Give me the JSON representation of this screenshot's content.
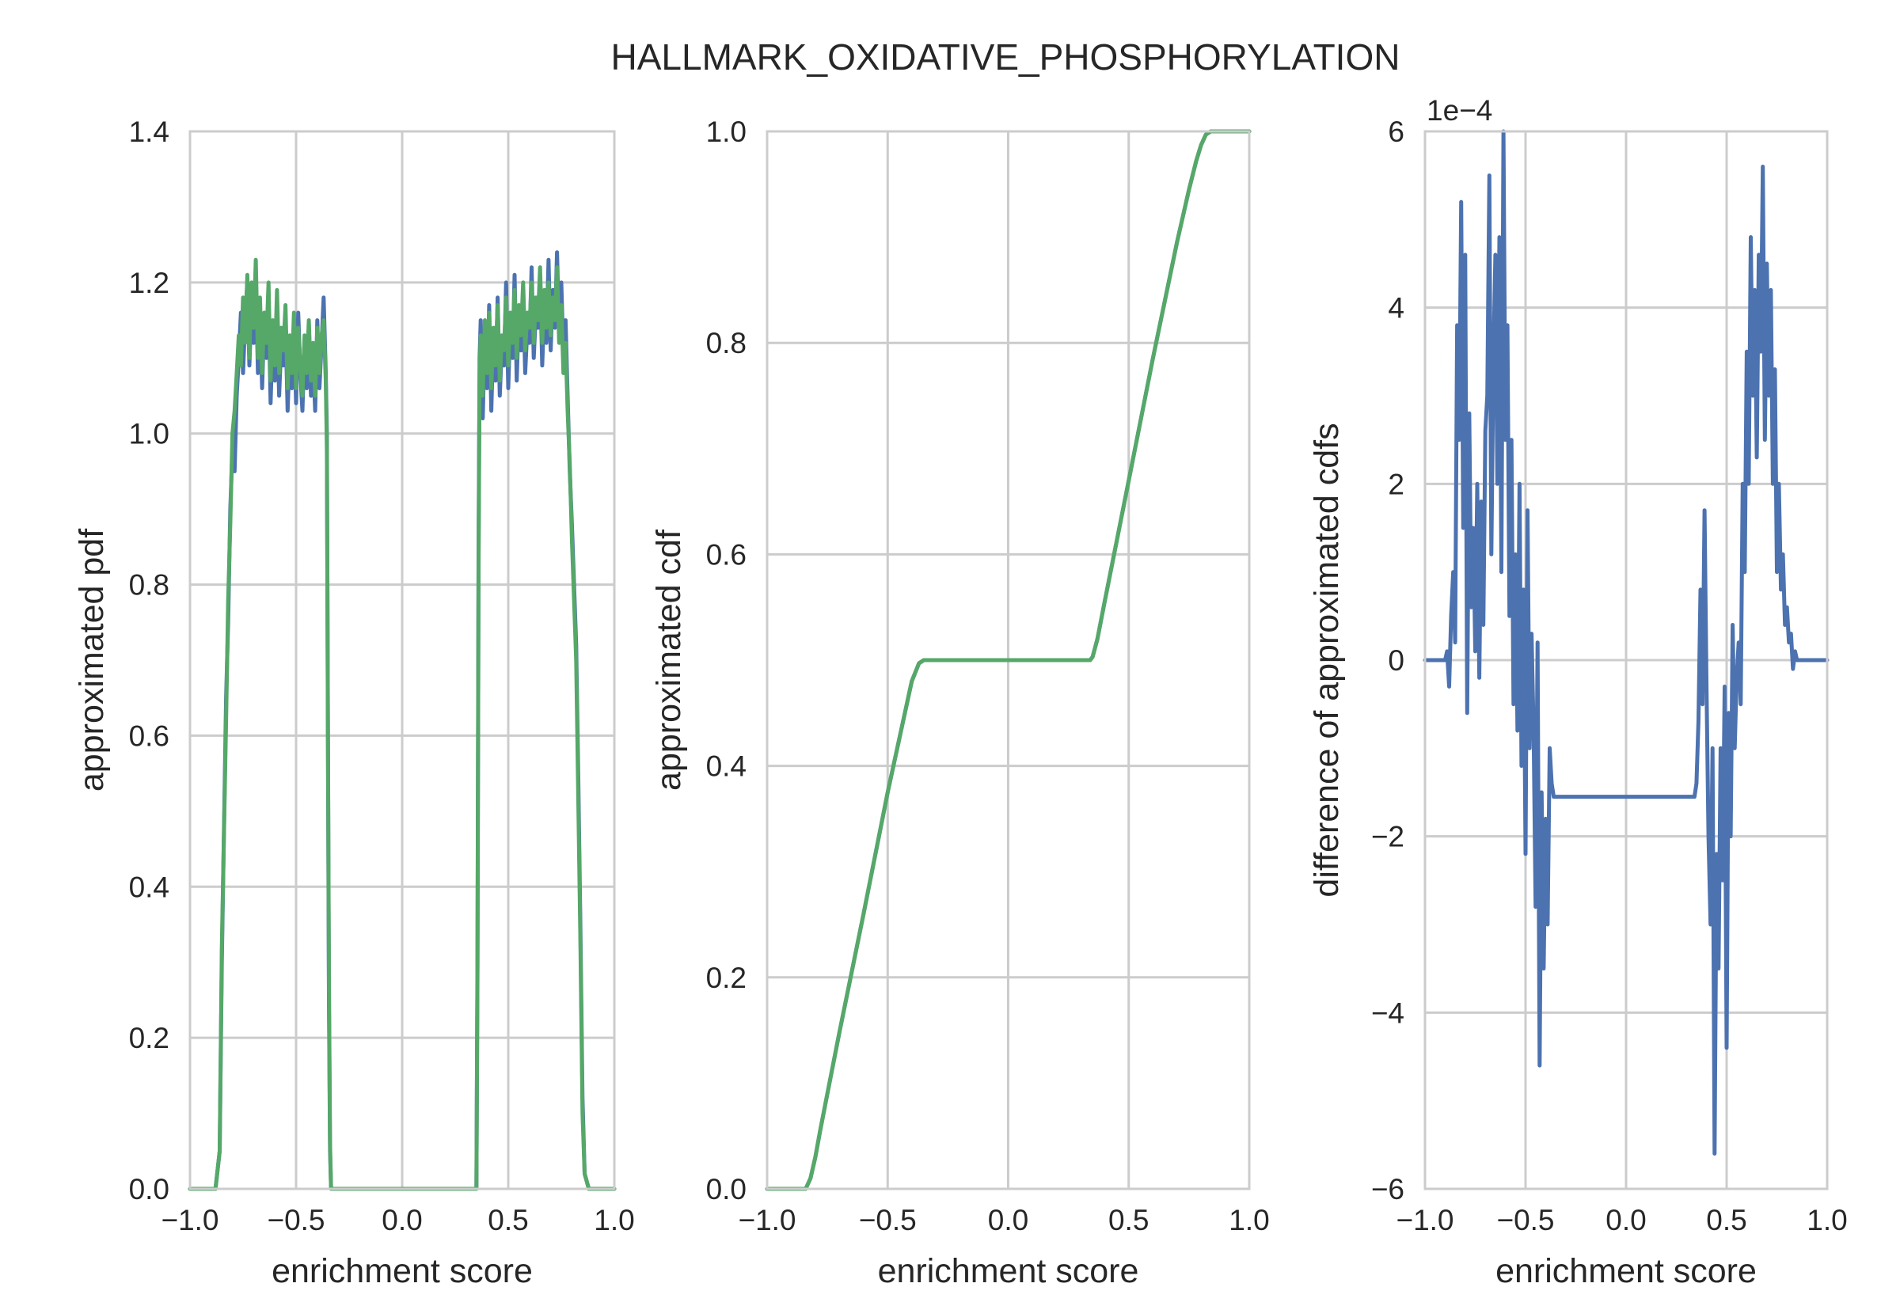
{
  "suptitle": "HALLMARK_OXIDATIVE_PHOSPHORYLATION",
  "colors": {
    "blue": "#4c72b0",
    "green": "#55a868",
    "grid": "#cccccc"
  },
  "chart_data": [
    {
      "type": "line",
      "title": "",
      "xlabel": "enrichment score",
      "ylabel": "approximated pdf",
      "xlim": [
        -1.0,
        1.0
      ],
      "ylim": [
        0.0,
        1.4
      ],
      "xticks": [
        -1.0,
        -0.5,
        0.0,
        0.5,
        1.0
      ],
      "xtick_labels": [
        "−1.0",
        "−0.5",
        "0.0",
        "0.5",
        "1.0"
      ],
      "yticks": [
        0.0,
        0.2,
        0.4,
        0.6,
        0.8,
        1.0,
        1.2,
        1.4
      ],
      "ytick_labels": [
        "0.0",
        "0.2",
        "0.4",
        "0.6",
        "0.8",
        "1.0",
        "1.2",
        "1.4"
      ],
      "grid": true,
      "series": [
        {
          "color": "#4c72b0",
          "x": [
            -1.0,
            -0.88,
            -0.86,
            -0.85,
            -0.83,
            -0.82,
            -0.81,
            -0.8,
            -0.79,
            -0.78,
            -0.77,
            -0.76,
            -0.75,
            -0.74,
            -0.73,
            -0.72,
            -0.71,
            -0.7,
            -0.69,
            -0.68,
            -0.67,
            -0.66,
            -0.65,
            -0.64,
            -0.63,
            -0.62,
            -0.61,
            -0.6,
            -0.59,
            -0.58,
            -0.57,
            -0.56,
            -0.55,
            -0.54,
            -0.53,
            -0.52,
            -0.51,
            -0.5,
            -0.49,
            -0.48,
            -0.47,
            -0.46,
            -0.45,
            -0.44,
            -0.43,
            -0.42,
            -0.41,
            -0.4,
            -0.39,
            -0.38,
            -0.37,
            -0.36,
            -0.355,
            -0.35,
            -0.345,
            -0.34,
            -0.335,
            -0.33,
            -0.32,
            0.34,
            0.35,
            0.355,
            0.36,
            0.365,
            0.37,
            0.38,
            0.39,
            0.4,
            0.41,
            0.42,
            0.43,
            0.44,
            0.45,
            0.46,
            0.47,
            0.48,
            0.49,
            0.5,
            0.51,
            0.52,
            0.53,
            0.54,
            0.55,
            0.56,
            0.57,
            0.58,
            0.59,
            0.6,
            0.61,
            0.62,
            0.63,
            0.64,
            0.65,
            0.66,
            0.67,
            0.68,
            0.69,
            0.7,
            0.71,
            0.72,
            0.73,
            0.74,
            0.75,
            0.76,
            0.77,
            0.78,
            0.79,
            0.8,
            0.81,
            0.82,
            0.83,
            0.84,
            0.85,
            0.86,
            0.88,
            1.0
          ],
          "y": [
            0.0,
            0.0,
            0.05,
            0.3,
            0.65,
            0.75,
            0.9,
            0.98,
            0.95,
            1.05,
            1.1,
            1.16,
            1.08,
            1.15,
            1.2,
            1.09,
            1.17,
            1.12,
            1.21,
            1.08,
            1.16,
            1.06,
            1.15,
            1.1,
            1.18,
            1.04,
            1.13,
            1.07,
            1.16,
            1.05,
            1.12,
            1.09,
            1.15,
            1.03,
            1.11,
            1.06,
            1.14,
            1.04,
            1.16,
            1.08,
            1.03,
            1.12,
            1.06,
            1.14,
            1.05,
            1.1,
            1.03,
            1.15,
            1.06,
            1.12,
            1.18,
            1.08,
            1.0,
            0.6,
            0.25,
            0.05,
            0.0,
            0.0,
            0.0,
            0.0,
            0.0,
            0.3,
            0.85,
            1.1,
            1.15,
            1.02,
            1.14,
            1.06,
            1.17,
            1.03,
            1.13,
            1.07,
            1.18,
            1.05,
            1.12,
            1.09,
            1.2,
            1.06,
            1.15,
            1.1,
            1.21,
            1.07,
            1.16,
            1.11,
            1.19,
            1.08,
            1.14,
            1.12,
            1.22,
            1.1,
            1.16,
            1.14,
            1.21,
            1.09,
            1.17,
            1.12,
            1.23,
            1.11,
            1.19,
            1.14,
            1.24,
            1.13,
            1.2,
            1.1,
            1.15,
            1.05,
            0.95,
            0.88,
            0.8,
            0.72,
            0.55,
            0.35,
            0.12,
            0.02,
            0.0,
            0.0
          ]
        },
        {
          "color": "#55a868",
          "x": [
            -1.0,
            -0.88,
            -0.86,
            -0.85,
            -0.83,
            -0.82,
            -0.81,
            -0.8,
            -0.79,
            -0.78,
            -0.77,
            -0.76,
            -0.75,
            -0.74,
            -0.73,
            -0.72,
            -0.71,
            -0.7,
            -0.69,
            -0.68,
            -0.67,
            -0.66,
            -0.65,
            -0.64,
            -0.63,
            -0.62,
            -0.61,
            -0.6,
            -0.59,
            -0.58,
            -0.57,
            -0.56,
            -0.55,
            -0.54,
            -0.53,
            -0.52,
            -0.51,
            -0.5,
            -0.49,
            -0.48,
            -0.47,
            -0.46,
            -0.45,
            -0.44,
            -0.43,
            -0.42,
            -0.41,
            -0.4,
            -0.39,
            -0.38,
            -0.37,
            -0.36,
            -0.355,
            -0.35,
            -0.345,
            -0.34,
            -0.335,
            -0.33,
            -0.32,
            0.34,
            0.35,
            0.355,
            0.36,
            0.365,
            0.37,
            0.38,
            0.39,
            0.4,
            0.41,
            0.42,
            0.43,
            0.44,
            0.45,
            0.46,
            0.47,
            0.48,
            0.49,
            0.5,
            0.51,
            0.52,
            0.53,
            0.54,
            0.55,
            0.56,
            0.57,
            0.58,
            0.59,
            0.6,
            0.61,
            0.62,
            0.63,
            0.64,
            0.65,
            0.66,
            0.67,
            0.68,
            0.69,
            0.7,
            0.71,
            0.72,
            0.73,
            0.74,
            0.75,
            0.76,
            0.77,
            0.78,
            0.79,
            0.8,
            0.81,
            0.82,
            0.83,
            0.84,
            0.85,
            0.86,
            0.88,
            1.0
          ],
          "y": [
            0.0,
            0.0,
            0.05,
            0.32,
            0.62,
            0.78,
            0.88,
            1.0,
            1.03,
            1.08,
            1.13,
            1.09,
            1.18,
            1.12,
            1.21,
            1.1,
            1.2,
            1.14,
            1.23,
            1.1,
            1.18,
            1.08,
            1.16,
            1.12,
            1.2,
            1.07,
            1.15,
            1.09,
            1.19,
            1.08,
            1.14,
            1.11,
            1.17,
            1.06,
            1.13,
            1.08,
            1.16,
            1.06,
            1.14,
            1.09,
            1.05,
            1.13,
            1.08,
            1.15,
            1.07,
            1.12,
            1.05,
            1.14,
            1.08,
            1.13,
            1.15,
            1.07,
            0.98,
            0.62,
            0.28,
            0.06,
            0.0,
            0.0,
            0.0,
            0.0,
            0.0,
            0.28,
            0.82,
            1.08,
            1.13,
            1.05,
            1.15,
            1.08,
            1.16,
            1.06,
            1.14,
            1.09,
            1.17,
            1.07,
            1.13,
            1.11,
            1.18,
            1.09,
            1.16,
            1.12,
            1.19,
            1.1,
            1.17,
            1.13,
            1.2,
            1.11,
            1.16,
            1.14,
            1.2,
            1.12,
            1.18,
            1.15,
            1.22,
            1.12,
            1.19,
            1.14,
            1.2,
            1.13,
            1.18,
            1.15,
            1.22,
            1.12,
            1.17,
            1.08,
            1.12,
            1.03,
            0.96,
            0.86,
            0.78,
            0.7,
            0.52,
            0.33,
            0.1,
            0.02,
            0.0,
            0.0
          ]
        }
      ]
    },
    {
      "type": "line",
      "title": "",
      "xlabel": "enrichment score",
      "ylabel": "approximated cdf",
      "xlim": [
        -1.0,
        1.0
      ],
      "ylim": [
        0.0,
        1.0
      ],
      "xticks": [
        -1.0,
        -0.5,
        0.0,
        0.5,
        1.0
      ],
      "xtick_labels": [
        "−1.0",
        "−0.5",
        "0.0",
        "0.5",
        "1.0"
      ],
      "yticks": [
        0.0,
        0.2,
        0.4,
        0.6,
        0.8,
        1.0
      ],
      "ytick_labels": [
        "0.0",
        "0.2",
        "0.4",
        "0.6",
        "0.8",
        "1.0"
      ],
      "grid": true,
      "series": [
        {
          "color": "#4c72b0",
          "x": [
            -1.0,
            -0.84,
            -0.82,
            -0.8,
            -0.78,
            -0.75,
            -0.7,
            -0.6,
            -0.5,
            -0.4,
            -0.37,
            -0.35,
            -0.34,
            0.34,
            0.35,
            0.37,
            0.4,
            0.5,
            0.6,
            0.7,
            0.75,
            0.78,
            0.8,
            0.82,
            0.84,
            1.0
          ],
          "y": [
            0.0,
            0.0,
            0.01,
            0.03,
            0.055,
            0.09,
            0.148,
            0.26,
            0.375,
            0.48,
            0.497,
            0.5,
            0.5,
            0.5,
            0.503,
            0.52,
            0.555,
            0.67,
            0.785,
            0.895,
            0.945,
            0.972,
            0.987,
            0.997,
            1.0,
            1.0
          ]
        },
        {
          "color": "#55a868",
          "x": [
            -1.0,
            -0.84,
            -0.82,
            -0.8,
            -0.78,
            -0.75,
            -0.7,
            -0.6,
            -0.5,
            -0.4,
            -0.37,
            -0.35,
            -0.34,
            0.34,
            0.35,
            0.37,
            0.4,
            0.5,
            0.6,
            0.7,
            0.75,
            0.78,
            0.8,
            0.82,
            0.84,
            1.0
          ],
          "y": [
            0.0,
            0.0,
            0.01,
            0.03,
            0.055,
            0.09,
            0.148,
            0.26,
            0.375,
            0.48,
            0.497,
            0.5,
            0.5,
            0.5,
            0.503,
            0.52,
            0.555,
            0.67,
            0.785,
            0.895,
            0.945,
            0.972,
            0.987,
            0.997,
            1.0,
            1.0
          ]
        }
      ]
    },
    {
      "type": "line",
      "title": "",
      "xlabel": "enrichment score",
      "ylabel": "difference of approximated cdfs",
      "offset_label": "1e−4",
      "xlim": [
        -1.0,
        1.0
      ],
      "ylim": [
        -6,
        6
      ],
      "xticks": [
        -1.0,
        -0.5,
        0.0,
        0.5,
        1.0
      ],
      "xtick_labels": [
        "−1.0",
        "−0.5",
        "0.0",
        "0.5",
        "1.0"
      ],
      "yticks": [
        -6,
        -4,
        -2,
        0,
        2,
        4,
        6
      ],
      "ytick_labels": [
        "−6",
        "−4",
        "−2",
        "0",
        "2",
        "4",
        "6"
      ],
      "grid": true,
      "series": [
        {
          "color": "#4c72b0",
          "x": [
            -1.0,
            -0.9,
            -0.89,
            -0.88,
            -0.87,
            -0.86,
            -0.85,
            -0.84,
            -0.83,
            -0.82,
            -0.81,
            -0.8,
            -0.79,
            -0.78,
            -0.77,
            -0.76,
            -0.75,
            -0.74,
            -0.73,
            -0.72,
            -0.71,
            -0.7,
            -0.69,
            -0.68,
            -0.67,
            -0.66,
            -0.65,
            -0.64,
            -0.63,
            -0.62,
            -0.61,
            -0.6,
            -0.59,
            -0.58,
            -0.57,
            -0.56,
            -0.55,
            -0.54,
            -0.53,
            -0.52,
            -0.51,
            -0.5,
            -0.49,
            -0.48,
            -0.47,
            -0.46,
            -0.45,
            -0.44,
            -0.43,
            -0.42,
            -0.41,
            -0.4,
            -0.39,
            -0.38,
            -0.37,
            -0.36,
            -0.35,
            0.33,
            0.34,
            0.35,
            0.36,
            0.37,
            0.38,
            0.39,
            0.4,
            0.41,
            0.42,
            0.43,
            0.44,
            0.45,
            0.46,
            0.47,
            0.48,
            0.49,
            0.5,
            0.51,
            0.52,
            0.53,
            0.54,
            0.55,
            0.56,
            0.57,
            0.58,
            0.59,
            0.6,
            0.61,
            0.62,
            0.63,
            0.64,
            0.65,
            0.66,
            0.67,
            0.68,
            0.69,
            0.7,
            0.71,
            0.72,
            0.73,
            0.74,
            0.75,
            0.76,
            0.77,
            0.78,
            0.79,
            0.8,
            0.81,
            0.82,
            0.83,
            0.84,
            0.85,
            0.86,
            0.87,
            0.88,
            0.89,
            0.9,
            1.0
          ],
          "y": [
            0.0,
            0.0,
            0.1,
            -0.3,
            0.5,
            1.0,
            0.2,
            3.8,
            2.5,
            5.2,
            1.5,
            4.6,
            -0.6,
            2.8,
            0.6,
            1.5,
            0.1,
            2.0,
            -0.2,
            1.8,
            0.4,
            2.6,
            3.0,
            5.5,
            1.2,
            3.4,
            4.6,
            2.0,
            4.8,
            1.0,
            6.0,
            2.5,
            3.8,
            0.5,
            2.5,
            -0.5,
            1.2,
            -0.8,
            2.0,
            -1.2,
            0.8,
            -2.2,
            1.7,
            -1.0,
            0.3,
            -0.8,
            -2.8,
            0.2,
            -4.6,
            -1.5,
            -3.5,
            -1.8,
            -3.0,
            -1.0,
            -1.4,
            -1.55,
            -1.55,
            -1.55,
            -1.55,
            -1.4,
            -0.7,
            0.8,
            -0.5,
            1.7,
            -0.3,
            -2.0,
            -3.0,
            -1.0,
            -5.6,
            -2.2,
            -3.5,
            -1.0,
            -2.5,
            -0.3,
            -4.4,
            -0.6,
            -2.0,
            0.4,
            -1.0,
            -0.2,
            0.2,
            -0.5,
            2.0,
            1.0,
            3.5,
            2.0,
            4.8,
            3.0,
            4.2,
            2.3,
            4.6,
            3.5,
            5.6,
            2.5,
            4.5,
            3.0,
            4.2,
            2.0,
            3.3,
            1.0,
            2.0,
            0.8,
            1.2,
            0.4,
            0.6,
            0.2,
            0.3,
            -0.1,
            0.1,
            0.0,
            0.0,
            0.0,
            0.0,
            0.0,
            0.0,
            0.0
          ]
        }
      ]
    }
  ]
}
